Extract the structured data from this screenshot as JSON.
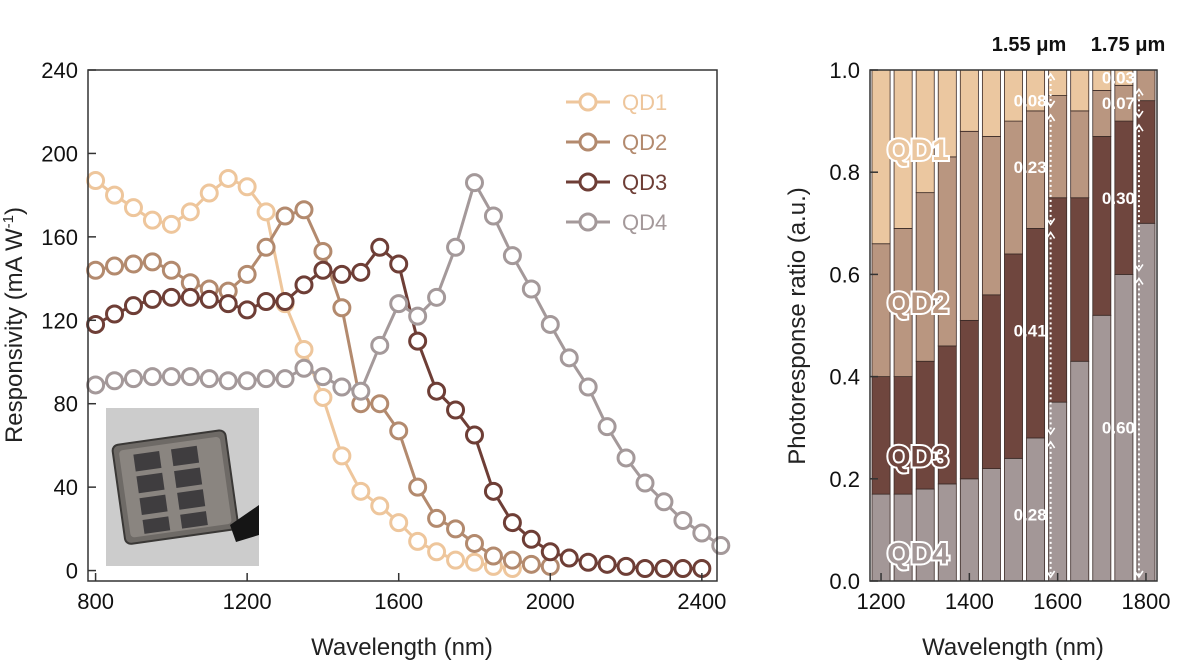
{
  "chart_data": [
    {
      "type": "line",
      "xlabel": "Wavelength (nm)",
      "ylabel": "Responsivity (mA W-1)",
      "ylabel_main": "Responsivity (mA W",
      "ylabel_sup": "-1",
      "ylabel_end": ")",
      "xlim": [
        780,
        2440
      ],
      "ylim": [
        -5,
        240
      ],
      "xticks": [
        800,
        1200,
        1600,
        2000,
        2400
      ],
      "yticks": [
        0,
        40,
        80,
        120,
        160,
        200,
        240
      ],
      "legend_position": "top-right",
      "inset": "photo-of-device",
      "series": [
        {
          "name": "QD1",
          "color": "#eec69c",
          "x": [
            800,
            850,
            900,
            950,
            1000,
            1050,
            1100,
            1150,
            1200,
            1250,
            1300,
            1350,
            1400,
            1450,
            1500,
            1550,
            1600,
            1650,
            1700,
            1750,
            1800,
            1850,
            1900
          ],
          "y": [
            187,
            180,
            174,
            168,
            166,
            172,
            181,
            188,
            184,
            172,
            128,
            106,
            83,
            55,
            38,
            31,
            23,
            14,
            9,
            5,
            4,
            2,
            1
          ]
        },
        {
          "name": "QD2",
          "color": "#b38a6e",
          "x": [
            800,
            850,
            900,
            950,
            1000,
            1050,
            1100,
            1150,
            1200,
            1250,
            1300,
            1350,
            1400,
            1450,
            1500,
            1550,
            1600,
            1650,
            1700,
            1750,
            1800,
            1850,
            1900,
            1950,
            2000
          ],
          "y": [
            144,
            146,
            147,
            148,
            144,
            138,
            135,
            134,
            142,
            155,
            170,
            173,
            153,
            126,
            80,
            80,
            67,
            40,
            25,
            20,
            13,
            7,
            5,
            3,
            2
          ]
        },
        {
          "name": "QD3",
          "color": "#6e3e36",
          "x": [
            800,
            850,
            900,
            950,
            1000,
            1050,
            1100,
            1150,
            1200,
            1250,
            1300,
            1350,
            1400,
            1450,
            1500,
            1550,
            1600,
            1650,
            1700,
            1750,
            1800,
            1850,
            1900,
            1950,
            2000,
            2050,
            2100,
            2150,
            2200,
            2250,
            2300,
            2350,
            2400
          ],
          "y": [
            118,
            123,
            127,
            130,
            131,
            131,
            130,
            128,
            125,
            129,
            129,
            137,
            144,
            142,
            143,
            155,
            147,
            110,
            86,
            77,
            65,
            38,
            23,
            15,
            9,
            6,
            4,
            3,
            2,
            1,
            1,
            1,
            1
          ]
        },
        {
          "name": "QD4",
          "color": "#a4999a",
          "x": [
            800,
            850,
            900,
            950,
            1000,
            1050,
            1100,
            1150,
            1200,
            1250,
            1300,
            1350,
            1400,
            1450,
            1500,
            1550,
            1600,
            1650,
            1700,
            1750,
            1800,
            1850,
            1900,
            1950,
            2000,
            2050,
            2100,
            2150,
            2200,
            2250,
            2300,
            2350,
            2400,
            2450
          ],
          "y": [
            89,
            91,
            92,
            93,
            93,
            93,
            92,
            91,
            91,
            92,
            92,
            97,
            93,
            88,
            86,
            108,
            128,
            122,
            131,
            155,
            186,
            170,
            151,
            135,
            118,
            102,
            88,
            69,
            54,
            42,
            33,
            24,
            18,
            12
          ]
        }
      ]
    },
    {
      "type": "bar",
      "stacked": true,
      "xlabel": "Wavelength (nm)",
      "ylabel": "Photoresponse ratio (a.u.)",
      "xlim": [
        1175,
        1825
      ],
      "ylim": [
        0,
        1.0
      ],
      "xticks": [
        1200,
        1400,
        1600,
        1800
      ],
      "yticks": [
        "0.0",
        "0.2",
        "0.4",
        "0.6",
        "0.8",
        "1.0"
      ],
      "top_labels": [
        "1.55 μm",
        "1.75 μm"
      ],
      "series_labels": [
        "QD1",
        "QD2",
        "QD3",
        "QD4"
      ],
      "x": [
        1200,
        1250,
        1300,
        1350,
        1400,
        1450,
        1500,
        1550,
        1600,
        1650,
        1700,
        1750,
        1800
      ],
      "series": [
        {
          "name": "QD4",
          "color": "#a39797",
          "values": [
            0.17,
            0.17,
            0.18,
            0.19,
            0.2,
            0.22,
            0.24,
            0.28,
            0.35,
            0.43,
            0.52,
            0.6,
            0.7
          ]
        },
        {
          "name": "QD3",
          "color": "#6f463e",
          "values": [
            0.23,
            0.23,
            0.25,
            0.27,
            0.31,
            0.34,
            0.4,
            0.41,
            0.4,
            0.32,
            0.35,
            0.3,
            0.24
          ]
        },
        {
          "name": "QD2",
          "color": "#b99680",
          "values": [
            0.26,
            0.29,
            0.33,
            0.37,
            0.37,
            0.31,
            0.26,
            0.23,
            0.2,
            0.17,
            0.09,
            0.07,
            0.07
          ]
        },
        {
          "name": "QD1",
          "color": "#ebc7a0",
          "values": [
            0.34,
            0.31,
            0.24,
            0.17,
            0.12,
            0.13,
            0.1,
            0.08,
            0.05,
            0.08,
            0.04,
            0.03,
            0.06
          ]
        }
      ],
      "annotations": [
        {
          "x": 1550,
          "label": "0.08",
          "y": 0.94
        },
        {
          "x": 1550,
          "label": "0.23",
          "y": 0.81
        },
        {
          "x": 1550,
          "label": "0.41",
          "y": 0.49
        },
        {
          "x": 1550,
          "label": "0.28",
          "y": 0.13
        },
        {
          "x": 1750,
          "label": "0.03",
          "y": 0.985
        },
        {
          "x": 1750,
          "label": "0.07",
          "y": 0.935
        },
        {
          "x": 1750,
          "label": "0.30",
          "y": 0.75
        },
        {
          "x": 1750,
          "label": "0.60",
          "y": 0.3
        }
      ]
    }
  ]
}
